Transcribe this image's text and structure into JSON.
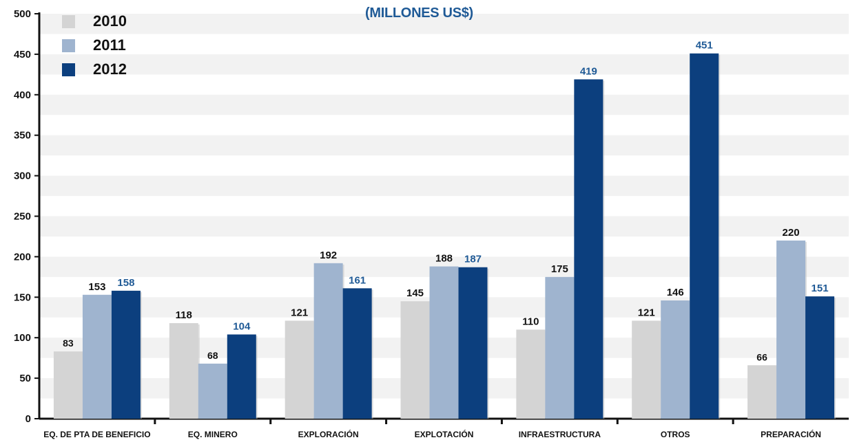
{
  "chart_data": {
    "type": "bar",
    "title": "(MILLONES US$)",
    "xlabel": "",
    "ylabel": "",
    "ylim": [
      0,
      500
    ],
    "yticks": [
      "0",
      "50",
      "100",
      "150",
      "200",
      "250",
      "300",
      "350",
      "400",
      "450",
      "500"
    ],
    "categories": [
      "EQ. DE PTA DE BENEFICIO",
      "EQ. MINERO",
      "EXPLORACIÓN",
      "EXPLOTACIÓN",
      "INFRAESTRUCTURA",
      "OTROS",
      "PREPARACIÓN"
    ],
    "series": [
      {
        "name": "2010",
        "color": "#d4d4d4",
        "label_color": "#111111",
        "values": [
          83,
          118,
          121,
          145,
          110,
          121,
          66
        ]
      },
      {
        "name": "2011",
        "color": "#9fb4cf",
        "label_color": "#111111",
        "values": [
          153,
          68,
          192,
          188,
          175,
          146,
          220
        ]
      },
      {
        "name": "2012",
        "color": "#0c3f7e",
        "label_color": "#1f5a96",
        "values": [
          158,
          104,
          161,
          187,
          419,
          451,
          151
        ]
      }
    ],
    "grid": "alternating horizontal bands",
    "legend_position": "top-left"
  }
}
